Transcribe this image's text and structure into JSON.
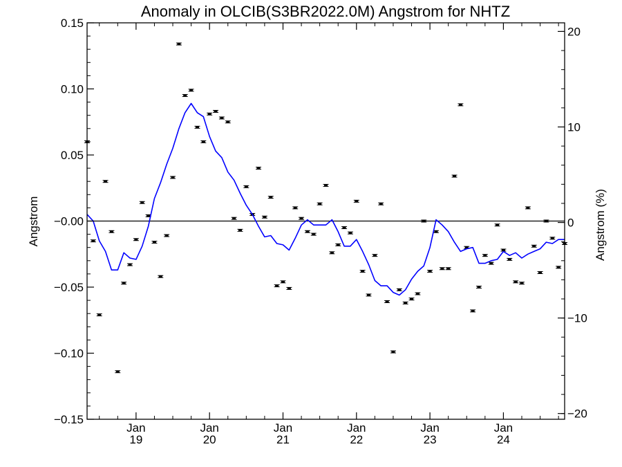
{
  "chart_data": {
    "type": "line",
    "title": "Anomaly in OLCIB(S3BR2022.0M) Angstrom for NHTZ",
    "ylabel": "Angstrom",
    "ylabel_right": "Angstrom (%)",
    "x_ticks": [
      {
        "date": "2019-01",
        "month": "Jan",
        "year": "19"
      },
      {
        "date": "2020-01",
        "month": "Jan",
        "year": "20"
      },
      {
        "date": "2021-01",
        "month": "Jan",
        "year": "21"
      },
      {
        "date": "2022-01",
        "month": "Jan",
        "year": "22"
      },
      {
        "date": "2023-01",
        "month": "Jan",
        "year": "23"
      },
      {
        "date": "2024-01",
        "month": "Jan",
        "year": "24"
      }
    ],
    "xlim": [
      "2018-05",
      "2024-11"
    ],
    "ylim": [
      -0.15,
      0.15
    ],
    "y_ticks": [
      "0.15",
      "0.10",
      "0.05",
      "-0.00",
      "-0.05",
      "-0.10",
      "-0.15"
    ],
    "y_right_lim": [
      -20.6,
      20.9
    ],
    "y_right_ticks": [
      "20",
      "10",
      "0",
      "−10",
      "−20"
    ],
    "reference_line": 0,
    "colors": {
      "line": "#0000ff",
      "points": "#000000",
      "axes": "#000000"
    },
    "series": [
      {
        "marker": "errorbar-points",
        "x": [
          "2018-05",
          "2018-06",
          "2018-07",
          "2018-08",
          "2018-09",
          "2018-10",
          "2018-11",
          "2018-12",
          "2019-01",
          "2019-02",
          "2019-03",
          "2019-04",
          "2019-05",
          "2019-06",
          "2019-07",
          "2019-08",
          "2019-09",
          "2019-10",
          "2019-11",
          "2019-12",
          "2020-01",
          "2020-02",
          "2020-03",
          "2020-04",
          "2020-05",
          "2020-06",
          "2020-07",
          "2020-08",
          "2020-09",
          "2020-10",
          "2020-11",
          "2020-12",
          "2021-01",
          "2021-02",
          "2021-03",
          "2021-04",
          "2021-05",
          "2021-06",
          "2021-07",
          "2021-08",
          "2021-09",
          "2021-10",
          "2021-11",
          "2021-12",
          "2022-01",
          "2022-02",
          "2022-03",
          "2022-04",
          "2022-05",
          "2022-06",
          "2022-07",
          "2022-08",
          "2022-09",
          "2022-10",
          "2022-11",
          "2022-12",
          "2023-01",
          "2023-02",
          "2023-03",
          "2023-04",
          "2023-05",
          "2023-06",
          "2023-07",
          "2023-08",
          "2023-09",
          "2023-10",
          "2023-11",
          "2023-12",
          "2024-01",
          "2024-02",
          "2024-03",
          "2024-04",
          "2024-05",
          "2024-06",
          "2024-07",
          "2024-08",
          "2024-09",
          "2024-10",
          "2024-11"
        ],
        "values": [
          0.06,
          -0.015,
          -0.071,
          0.03,
          -0.008,
          -0.114,
          -0.047,
          -0.033,
          -0.014,
          0.014,
          0.004,
          -0.016,
          -0.042,
          -0.011,
          0.033,
          0.134,
          0.095,
          0.099,
          0.071,
          0.06,
          0.081,
          0.083,
          0.078,
          0.075,
          0.002,
          -0.007,
          0.026,
          0.005,
          0.04,
          0.003,
          0.018,
          -0.049,
          -0.046,
          -0.051,
          0.01,
          0.002,
          -0.008,
          -0.01,
          0.013,
          0.027,
          -0.024,
          -0.018,
          -0.005,
          -0.009,
          0.015,
          -0.038,
          -0.056,
          -0.026,
          0.013,
          -0.061,
          -0.099,
          -0.052,
          -0.062,
          -0.059,
          -0.055,
          0.0,
          -0.038,
          -0.008,
          -0.036,
          -0.036,
          0.034,
          0.088,
          -0.02,
          -0.068,
          -0.05,
          -0.026,
          -0.032,
          -0.003,
          -0.022,
          -0.029,
          -0.046,
          -0.047,
          0.01,
          -0.019,
          -0.039,
          0.0,
          -0.013,
          -0.035,
          -0.017
        ]
      },
      {
        "marker": "line",
        "x": [
          "2018-05",
          "2018-06",
          "2018-07",
          "2018-08",
          "2018-09",
          "2018-10",
          "2018-11",
          "2018-12",
          "2019-01",
          "2019-02",
          "2019-03",
          "2019-04",
          "2019-05",
          "2019-06",
          "2019-07",
          "2019-08",
          "2019-09",
          "2019-10",
          "2019-11",
          "2019-12",
          "2020-01",
          "2020-02",
          "2020-03",
          "2020-04",
          "2020-05",
          "2020-06",
          "2020-07",
          "2020-08",
          "2020-09",
          "2020-10",
          "2020-11",
          "2020-12",
          "2021-01",
          "2021-02",
          "2021-03",
          "2021-04",
          "2021-05",
          "2021-06",
          "2021-07",
          "2021-08",
          "2021-09",
          "2021-10",
          "2021-11",
          "2021-12",
          "2022-01",
          "2022-02",
          "2022-03",
          "2022-04",
          "2022-05",
          "2022-06",
          "2022-07",
          "2022-08",
          "2022-09",
          "2022-10",
          "2022-11",
          "2022-12",
          "2023-01",
          "2023-02",
          "2023-03",
          "2023-04",
          "2023-05",
          "2023-06",
          "2023-07",
          "2023-08",
          "2023-09",
          "2023-10",
          "2023-11",
          "2023-12",
          "2024-01",
          "2024-02",
          "2024-03",
          "2024-04",
          "2024-05",
          "2024-06",
          "2024-07",
          "2024-08",
          "2024-09",
          "2024-10",
          "2024-11"
        ],
        "values": [
          0.005,
          0.0,
          -0.015,
          -0.023,
          -0.037,
          -0.037,
          -0.024,
          -0.028,
          -0.029,
          -0.019,
          -0.004,
          0.017,
          0.029,
          0.043,
          0.055,
          0.07,
          0.082,
          0.089,
          0.082,
          0.079,
          0.064,
          0.053,
          0.048,
          0.037,
          0.031,
          0.021,
          0.012,
          0.005,
          -0.004,
          -0.012,
          -0.011,
          -0.017,
          -0.018,
          -0.022,
          -0.013,
          -0.003,
          0.001,
          -0.003,
          -0.003,
          -0.003,
          0.001,
          -0.008,
          -0.019,
          -0.019,
          -0.014,
          -0.023,
          -0.033,
          -0.045,
          -0.049,
          -0.049,
          -0.054,
          -0.056,
          -0.052,
          -0.044,
          -0.038,
          -0.034,
          -0.02,
          0.001,
          -0.003,
          -0.008,
          -0.016,
          -0.023,
          -0.021,
          -0.02,
          -0.032,
          -0.032,
          -0.03,
          -0.029,
          -0.023,
          -0.026,
          -0.024,
          -0.028,
          -0.025,
          -0.023,
          -0.021,
          -0.016,
          -0.017,
          -0.014,
          -0.014
        ]
      }
    ]
  }
}
